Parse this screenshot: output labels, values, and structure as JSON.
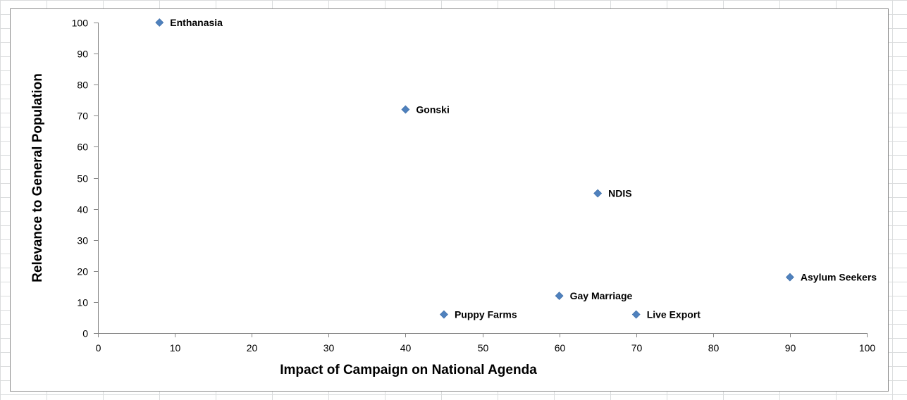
{
  "chart_data": {
    "type": "scatter",
    "xlabel": "Impact of Campaign on National Agenda",
    "ylabel": "Relevance to General Population",
    "xlim": [
      0,
      100
    ],
    "ylim": [
      0,
      100
    ],
    "xticks": [
      0,
      10,
      20,
      30,
      40,
      50,
      60,
      70,
      80,
      90,
      100
    ],
    "yticks": [
      0,
      10,
      20,
      30,
      40,
      50,
      60,
      70,
      80,
      90,
      100
    ],
    "grid": false,
    "marker": "diamond",
    "marker_color": "#4f81bd",
    "points": [
      {
        "label": "Enthanasia",
        "x": 8,
        "y": 100
      },
      {
        "label": "Gonski",
        "x": 40,
        "y": 72
      },
      {
        "label": "NDIS",
        "x": 65,
        "y": 45
      },
      {
        "label": "Asylum Seekers",
        "x": 90,
        "y": 18
      },
      {
        "label": "Gay Marriage",
        "x": 60,
        "y": 12
      },
      {
        "label": "Puppy Farms",
        "x": 45,
        "y": 6
      },
      {
        "label": "Live Export",
        "x": 70,
        "y": 6
      }
    ]
  }
}
